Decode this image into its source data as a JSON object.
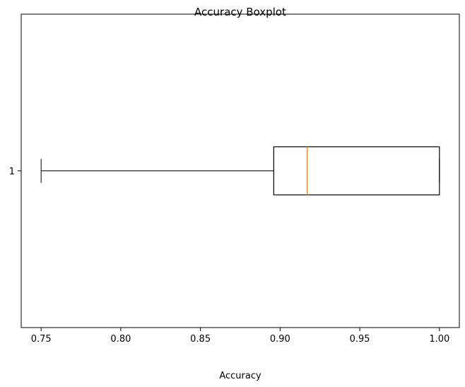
{
  "chart_data": {
    "type": "boxplot",
    "orientation": "horizontal",
    "title": "Accuracy Boxplot",
    "xlabel": "Accuracy",
    "ylabel": "",
    "xlim": [
      0.7375,
      1.0125
    ],
    "x_ticks": [
      "0.75",
      "0.80",
      "0.85",
      "0.90",
      "0.95",
      "1.00"
    ],
    "y_ticks": [
      "1"
    ],
    "grid": false,
    "series": [
      {
        "position": 1,
        "whisker_low": 0.75,
        "q1": 0.896,
        "median": 0.917,
        "q3": 1.0,
        "whisker_high": 1.0
      }
    ],
    "colors": {
      "box": "#000000",
      "median": "#ff7f0e",
      "whisker": "#000000"
    }
  }
}
